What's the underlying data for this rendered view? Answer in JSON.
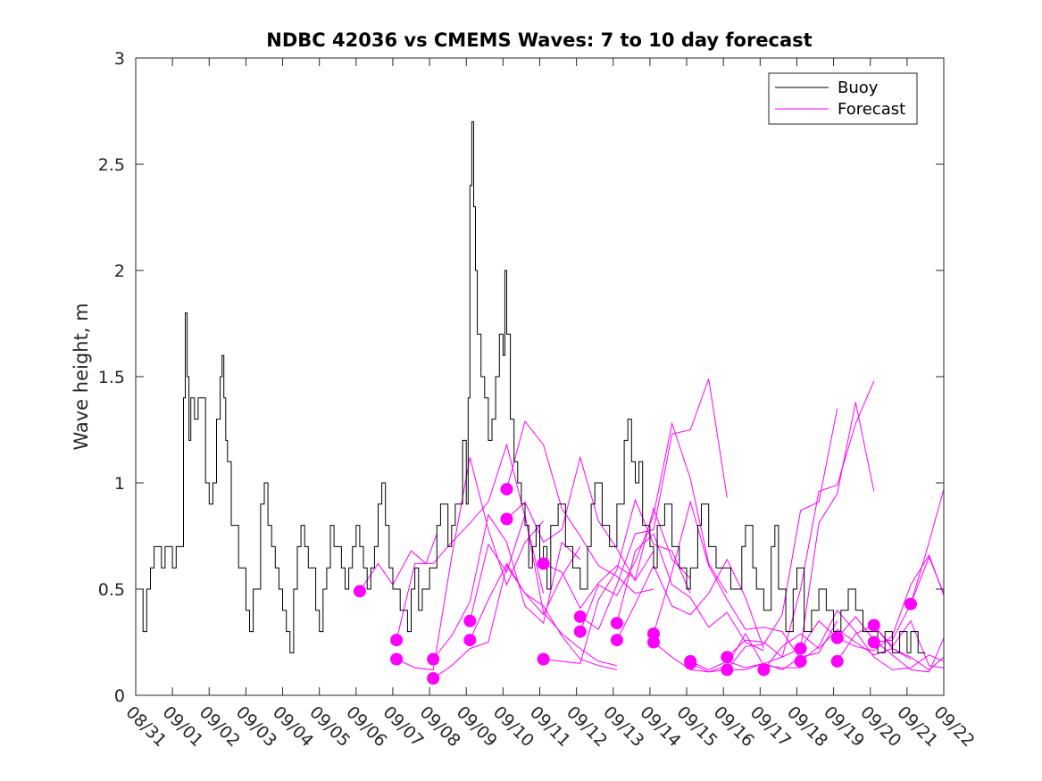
{
  "chart_data": {
    "type": "line",
    "title": "NDBC 42036 vs CMEMS Waves: 7 to 10 day forecast",
    "xlabel": "",
    "ylabel": "Wave height, m",
    "ylim": [
      0,
      3
    ],
    "xlim": [
      0,
      22
    ],
    "yticks": [
      "0",
      "0.5",
      "1",
      "1.5",
      "2",
      "2.5",
      "3"
    ],
    "ytick_values": [
      0,
      0.5,
      1,
      1.5,
      2,
      2.5,
      3
    ],
    "xtick_labels": [
      "08/31",
      "09/01",
      "09/02",
      "09/03",
      "09/04",
      "09/05",
      "09/06",
      "09/07",
      "09/08",
      "09/09",
      "09/10",
      "09/11",
      "09/12",
      "09/13",
      "09/14",
      "09/15",
      "09/16",
      "09/17",
      "09/18",
      "09/19",
      "09/20",
      "09/21",
      "09/22"
    ],
    "legend": {
      "position": "top-right",
      "entries": [
        {
          "label": "Buoy",
          "color": "#000000"
        },
        {
          "label": "Forecast",
          "color": "#ff00ff"
        }
      ]
    },
    "colors": {
      "buoy": "#000000",
      "forecast": "#ff00ff",
      "axis": "#262626"
    },
    "buoy": {
      "name": "Buoy",
      "x": [
        0.1,
        0.2,
        0.3,
        0.4,
        0.5,
        0.6,
        0.7,
        0.8,
        1.0,
        1.1,
        1.3,
        1.35,
        1.4,
        1.45,
        1.5,
        1.6,
        1.7,
        1.9,
        2.0,
        2.1,
        2.2,
        2.3,
        2.35,
        2.4,
        2.45,
        2.5,
        2.6,
        2.8,
        3.0,
        3.1,
        3.2,
        3.4,
        3.5,
        3.6,
        3.7,
        3.8,
        3.9,
        4.0,
        4.1,
        4.2,
        4.3,
        4.4,
        4.5,
        4.6,
        4.7,
        4.9,
        5.0,
        5.1,
        5.2,
        5.3,
        5.4,
        5.5,
        5.6,
        5.7,
        5.8,
        5.9,
        6.0,
        6.1,
        6.2,
        6.3,
        6.4,
        6.5,
        6.6,
        6.7,
        6.8,
        6.9,
        7.0,
        7.2,
        7.4,
        7.5,
        7.6,
        7.7,
        7.8,
        8.0,
        8.2,
        8.3,
        8.5,
        8.6,
        8.7,
        8.8,
        8.9,
        9.0,
        9.05,
        9.1,
        9.15,
        9.2,
        9.25,
        9.3,
        9.4,
        9.5,
        9.6,
        9.7,
        9.8,
        9.9,
        10.0,
        10.05,
        10.1,
        10.2,
        10.3,
        10.4,
        10.5,
        10.6,
        10.7,
        10.8,
        10.9,
        11.0,
        11.1,
        11.2,
        11.3,
        11.5,
        11.7,
        11.9,
        12.1,
        12.3,
        12.4,
        12.5,
        12.7,
        12.9,
        13.1,
        13.3,
        13.4,
        13.5,
        13.6,
        13.7,
        13.8,
        14.0,
        14.1,
        14.2,
        14.4,
        14.6,
        14.8,
        15.0,
        15.1,
        15.3,
        15.4,
        15.6,
        15.8,
        16.0,
        16.2,
        16.3,
        16.5,
        16.6,
        16.8,
        16.9,
        17.1,
        17.3,
        17.4,
        17.5,
        17.7,
        17.9,
        18.0,
        18.2,
        18.4,
        18.6,
        18.8,
        19.0,
        19.2,
        19.4,
        19.6,
        19.8,
        20.0,
        20.2,
        20.4,
        20.6,
        20.8,
        21.0,
        21.1,
        21.3,
        21.5
      ],
      "y": [
        0.5,
        0.3,
        0.5,
        0.6,
        0.7,
        0.7,
        0.6,
        0.7,
        0.6,
        0.7,
        1.4,
        1.8,
        1.5,
        1.2,
        1.4,
        1.3,
        1.4,
        1.0,
        0.9,
        1.0,
        1.3,
        1.5,
        1.6,
        1.4,
        1.2,
        1.1,
        0.8,
        0.6,
        0.4,
        0.3,
        0.5,
        0.9,
        1.0,
        0.8,
        0.7,
        0.6,
        0.5,
        0.4,
        0.3,
        0.2,
        0.5,
        0.7,
        0.8,
        0.7,
        0.6,
        0.4,
        0.3,
        0.5,
        0.6,
        0.8,
        0.7,
        0.7,
        0.6,
        0.5,
        0.6,
        0.7,
        0.8,
        0.7,
        0.6,
        0.5,
        0.6,
        0.7,
        0.9,
        1.0,
        0.8,
        0.6,
        0.5,
        0.4,
        0.3,
        0.5,
        0.6,
        0.4,
        0.5,
        0.6,
        0.8,
        0.9,
        0.7,
        0.8,
        0.9,
        0.9,
        1.2,
        0.9,
        1.4,
        2.4,
        2.7,
        2.3,
        2.0,
        1.7,
        1.5,
        1.4,
        1.2,
        1.3,
        1.5,
        1.7,
        1.6,
        2.0,
        1.7,
        1.3,
        1.1,
        1.0,
        0.9,
        0.8,
        0.6,
        0.7,
        0.8,
        0.6,
        0.7,
        0.5,
        0.8,
        0.9,
        0.7,
        0.6,
        0.5,
        0.7,
        0.9,
        1.0,
        0.8,
        0.7,
        0.9,
        1.2,
        1.3,
        1.1,
        1.0,
        1.1,
        0.8,
        0.7,
        0.6,
        0.8,
        0.9,
        0.7,
        0.6,
        0.5,
        0.6,
        0.8,
        0.9,
        0.7,
        0.6,
        0.6,
        0.5,
        0.5,
        0.7,
        0.8,
        0.6,
        0.5,
        0.4,
        0.7,
        0.8,
        0.5,
        0.3,
        0.5,
        0.6,
        0.3,
        0.4,
        0.5,
        0.4,
        0.3,
        0.4,
        0.5,
        0.4,
        0.3,
        0.3,
        0.2,
        0.3,
        0.2,
        0.3,
        0.2,
        0.3,
        0.2,
        0.2
      ]
    },
    "forecasts": [
      {
        "x": [
          6.1,
          6.6,
          7.0,
          7.5,
          7.9,
          8.2
        ],
        "y": [
          0.49,
          0.62,
          0.52,
          0.68,
          0.62,
          0.76
        ]
      },
      {
        "x": [
          7.1,
          7.6,
          8.1,
          8.6,
          9.1,
          9.6,
          10.1,
          10.6,
          11.1
        ],
        "y": [
          0.26,
          0.62,
          0.62,
          0.72,
          0.81,
          0.91,
          1.18,
          0.84,
          0.48
        ]
      },
      {
        "x": [
          7.1,
          7.6,
          8.1,
          8.6,
          9.1,
          9.6,
          10.1,
          10.6,
          11.1
        ],
        "y": [
          0.17,
          0.13,
          0.12,
          0.65,
          1.12,
          0.78,
          0.52,
          0.72,
          0.82
        ]
      },
      {
        "x": [
          8.1,
          8.6,
          9.1,
          9.6,
          10.1,
          10.6,
          11.1,
          11.6,
          12.1
        ],
        "y": [
          0.17,
          0.28,
          0.44,
          0.85,
          0.72,
          0.42,
          0.34,
          0.72,
          0.64
        ]
      },
      {
        "x": [
          8.1,
          8.6,
          9.1,
          9.6,
          10.1,
          10.6,
          11.1,
          11.6,
          12.1
        ],
        "y": [
          0.08,
          0.14,
          0.22,
          0.25,
          0.61,
          0.48,
          0.38,
          0.56,
          0.7
        ]
      },
      {
        "x": [
          9.1,
          9.6,
          10.1,
          10.6,
          11.1,
          11.6,
          12.1,
          12.6,
          13.1
        ],
        "y": [
          0.35,
          0.71,
          0.58,
          0.85,
          0.39,
          0.29,
          0.22,
          0.16,
          0.14
        ]
      },
      {
        "x": [
          9.1,
          9.6,
          10.1,
          10.6,
          11.1,
          11.6,
          12.1,
          12.6,
          13.1
        ],
        "y": [
          0.26,
          0.45,
          0.62,
          0.48,
          0.42,
          0.28,
          0.17,
          0.14,
          0.12
        ]
      },
      {
        "x": [
          10.1,
          10.6,
          11.1,
          11.6,
          12.1,
          12.6,
          13.1,
          13.6,
          14.1
        ],
        "y": [
          0.97,
          1.29,
          1.18,
          0.88,
          0.75,
          0.61,
          0.56,
          0.48,
          0.5
        ]
      },
      {
        "x": [
          10.1,
          10.6,
          11.1,
          11.6,
          12.1,
          12.6,
          13.1,
          13.6,
          14.1
        ],
        "y": [
          0.83,
          0.91,
          0.72,
          0.78,
          1.12,
          0.82,
          0.69,
          0.54,
          0.68
        ]
      },
      {
        "x": [
          11.1,
          11.6,
          12.1,
          12.6,
          13.1,
          13.6,
          14.1,
          14.6,
          15.1
        ],
        "y": [
          0.62,
          0.58,
          0.41,
          0.53,
          0.61,
          0.55,
          0.88,
          0.64,
          0.55
        ]
      },
      {
        "x": [
          11.1,
          11.6,
          12.1,
          12.6,
          13.1,
          13.6,
          14.1,
          14.6,
          15.1
        ],
        "y": [
          0.17,
          0.16,
          0.15,
          0.45,
          0.59,
          0.92,
          0.71,
          0.68,
          0.48
        ]
      },
      {
        "x": [
          12.1,
          12.6,
          13.1,
          13.6,
          14.1,
          14.6,
          15.1,
          15.6,
          16.1
        ],
        "y": [
          0.37,
          0.31,
          0.52,
          0.76,
          0.78,
          1.23,
          1.25,
          1.49,
          0.93
        ]
      },
      {
        "x": [
          12.1,
          12.6,
          13.1,
          13.6,
          14.1,
          14.6,
          15.1,
          15.6,
          16.1
        ],
        "y": [
          0.3,
          0.52,
          0.47,
          0.63,
          0.85,
          1.28,
          1.02,
          0.62,
          0.48
        ]
      },
      {
        "x": [
          13.1,
          13.6,
          14.1,
          14.6,
          15.1,
          15.6,
          16.1,
          16.6,
          17.1
        ],
        "y": [
          0.34,
          0.68,
          0.76,
          0.52,
          0.46,
          0.32,
          0.39,
          0.25,
          0.21
        ]
      },
      {
        "x": [
          13.1,
          13.6,
          14.1,
          14.6,
          15.1,
          15.6,
          16.1,
          16.6,
          17.1
        ],
        "y": [
          0.26,
          0.43,
          0.61,
          0.42,
          0.38,
          0.48,
          0.64,
          0.46,
          0.22
        ]
      },
      {
        "x": [
          14.1,
          14.6,
          15.1,
          15.6,
          16.1,
          16.6,
          17.1,
          17.6,
          18.1
        ],
        "y": [
          0.29,
          0.58,
          0.91,
          0.61,
          0.45,
          0.31,
          0.32,
          0.3,
          0.17
        ]
      },
      {
        "x": [
          14.1,
          14.6,
          15.1,
          15.6,
          16.1,
          16.6,
          17.1,
          17.6,
          18.1
        ],
        "y": [
          0.25,
          0.18,
          0.12,
          0.11,
          0.14,
          0.29,
          0.14,
          0.13,
          0.13
        ]
      },
      {
        "x": [
          15.1,
          15.6,
          16.1,
          16.6,
          17.1,
          17.6,
          18.1,
          18.6,
          19.1
        ],
        "y": [
          0.16,
          0.12,
          0.16,
          0.13,
          0.15,
          0.12,
          0.18,
          0.2,
          0.35
        ]
      },
      {
        "x": [
          15.1,
          15.6,
          16.1,
          16.6,
          17.1,
          17.6,
          18.1,
          18.6,
          19.1
        ],
        "y": [
          0.15,
          0.11,
          0.12,
          0.23,
          0.24,
          0.38,
          0.87,
          0.91,
          1.35
        ]
      },
      {
        "x": [
          16.1,
          16.6,
          17.1,
          17.6,
          18.1,
          18.6,
          19.1,
          19.6,
          20.1
        ],
        "y": [
          0.18,
          0.26,
          0.25,
          0.18,
          0.22,
          0.81,
          0.95,
          1.38,
          0.96
        ]
      },
      {
        "x": [
          16.1,
          16.6,
          17.1,
          17.6,
          18.1,
          18.6,
          19.1,
          19.6,
          20.1
        ],
        "y": [
          0.12,
          0.12,
          0.15,
          0.18,
          0.5,
          0.96,
          0.99,
          1.28,
          1.48
        ]
      },
      {
        "x": [
          17.1,
          17.6,
          18.1,
          18.6,
          19.1,
          19.6,
          20.1,
          20.6,
          21.1
        ],
        "y": [
          0.12,
          0.23,
          0.29,
          0.22,
          0.31,
          0.25,
          0.19,
          0.22,
          0.17
        ]
      },
      {
        "x": [
          18.1,
          18.6,
          19.1,
          19.6,
          20.1,
          20.6,
          21.1,
          21.6,
          22.0
        ],
        "y": [
          0.22,
          0.35,
          0.27,
          0.23,
          0.21,
          0.28,
          0.52,
          0.66,
          0.47
        ]
      },
      {
        "x": [
          18.1,
          18.6,
          19.1,
          19.6,
          20.1,
          20.6,
          21.1,
          21.6,
          22.0
        ],
        "y": [
          0.16,
          0.23,
          0.4,
          0.3,
          0.18,
          0.12,
          0.13,
          0.19,
          0.16
        ]
      },
      {
        "x": [
          19.1,
          19.6,
          20.1,
          20.6,
          21.1,
          21.6,
          22.0
        ],
        "y": [
          0.27,
          0.37,
          0.26,
          0.19,
          0.12,
          0.11,
          0.27
        ]
      },
      {
        "x": [
          19.1,
          19.6,
          20.1,
          20.6,
          21.1,
          21.6,
          22.0
        ],
        "y": [
          0.16,
          0.29,
          0.33,
          0.23,
          0.35,
          0.14,
          0.13
        ]
      },
      {
        "x": [
          20.1,
          20.6,
          21.1,
          21.6,
          22.0
        ],
        "y": [
          0.33,
          0.22,
          0.18,
          0.12,
          0.18
        ]
      },
      {
        "x": [
          20.1,
          20.6,
          21.1,
          21.6,
          22.0
        ],
        "y": [
          0.25,
          0.26,
          0.43,
          0.72,
          0.97
        ]
      },
      {
        "x": [
          21.1,
          21.6,
          22.0
        ],
        "y": [
          0.43,
          0.65,
          0.48
        ]
      }
    ]
  }
}
